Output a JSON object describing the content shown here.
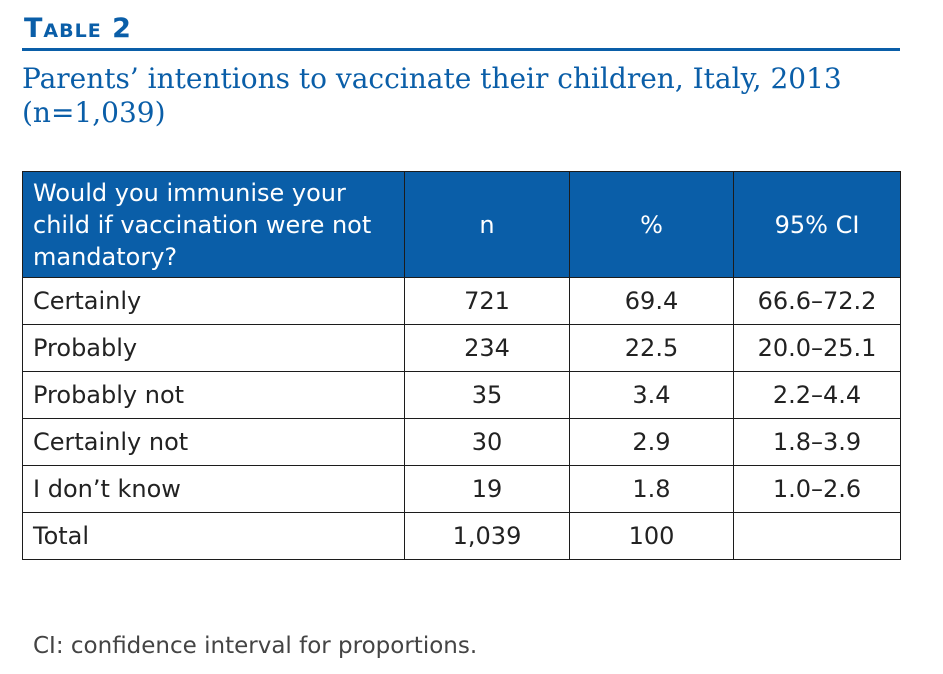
{
  "table_label": "Table 2",
  "caption": "Parents’ intentions to vaccinate their children, Italy, 2013 (n=1,039)",
  "table": {
    "headers": [
      "Would you immunise your child if vaccination were not mandatory?",
      "n",
      "%",
      "95% CI"
    ],
    "rows": [
      [
        "Certainly",
        "721",
        "69.4",
        "66.6–72.2"
      ],
      [
        "Probably",
        "234",
        "22.5",
        "20.0–25.1"
      ],
      [
        "Probably not",
        "35",
        "3.4",
        "2.2–4.4"
      ],
      [
        "Certainly not",
        "30",
        "2.9",
        "1.8–3.9"
      ],
      [
        "I don’t know",
        "19",
        "1.8",
        "1.0–2.6"
      ],
      [
        "Total",
        "1,039",
        "100",
        ""
      ]
    ]
  },
  "footnote": "CI: confidence interval for proportions.",
  "colors": {
    "accent": "#0a5ea8",
    "header_text": "#ffffff",
    "border": "#1c1c1c",
    "body_text": "#222222"
  }
}
